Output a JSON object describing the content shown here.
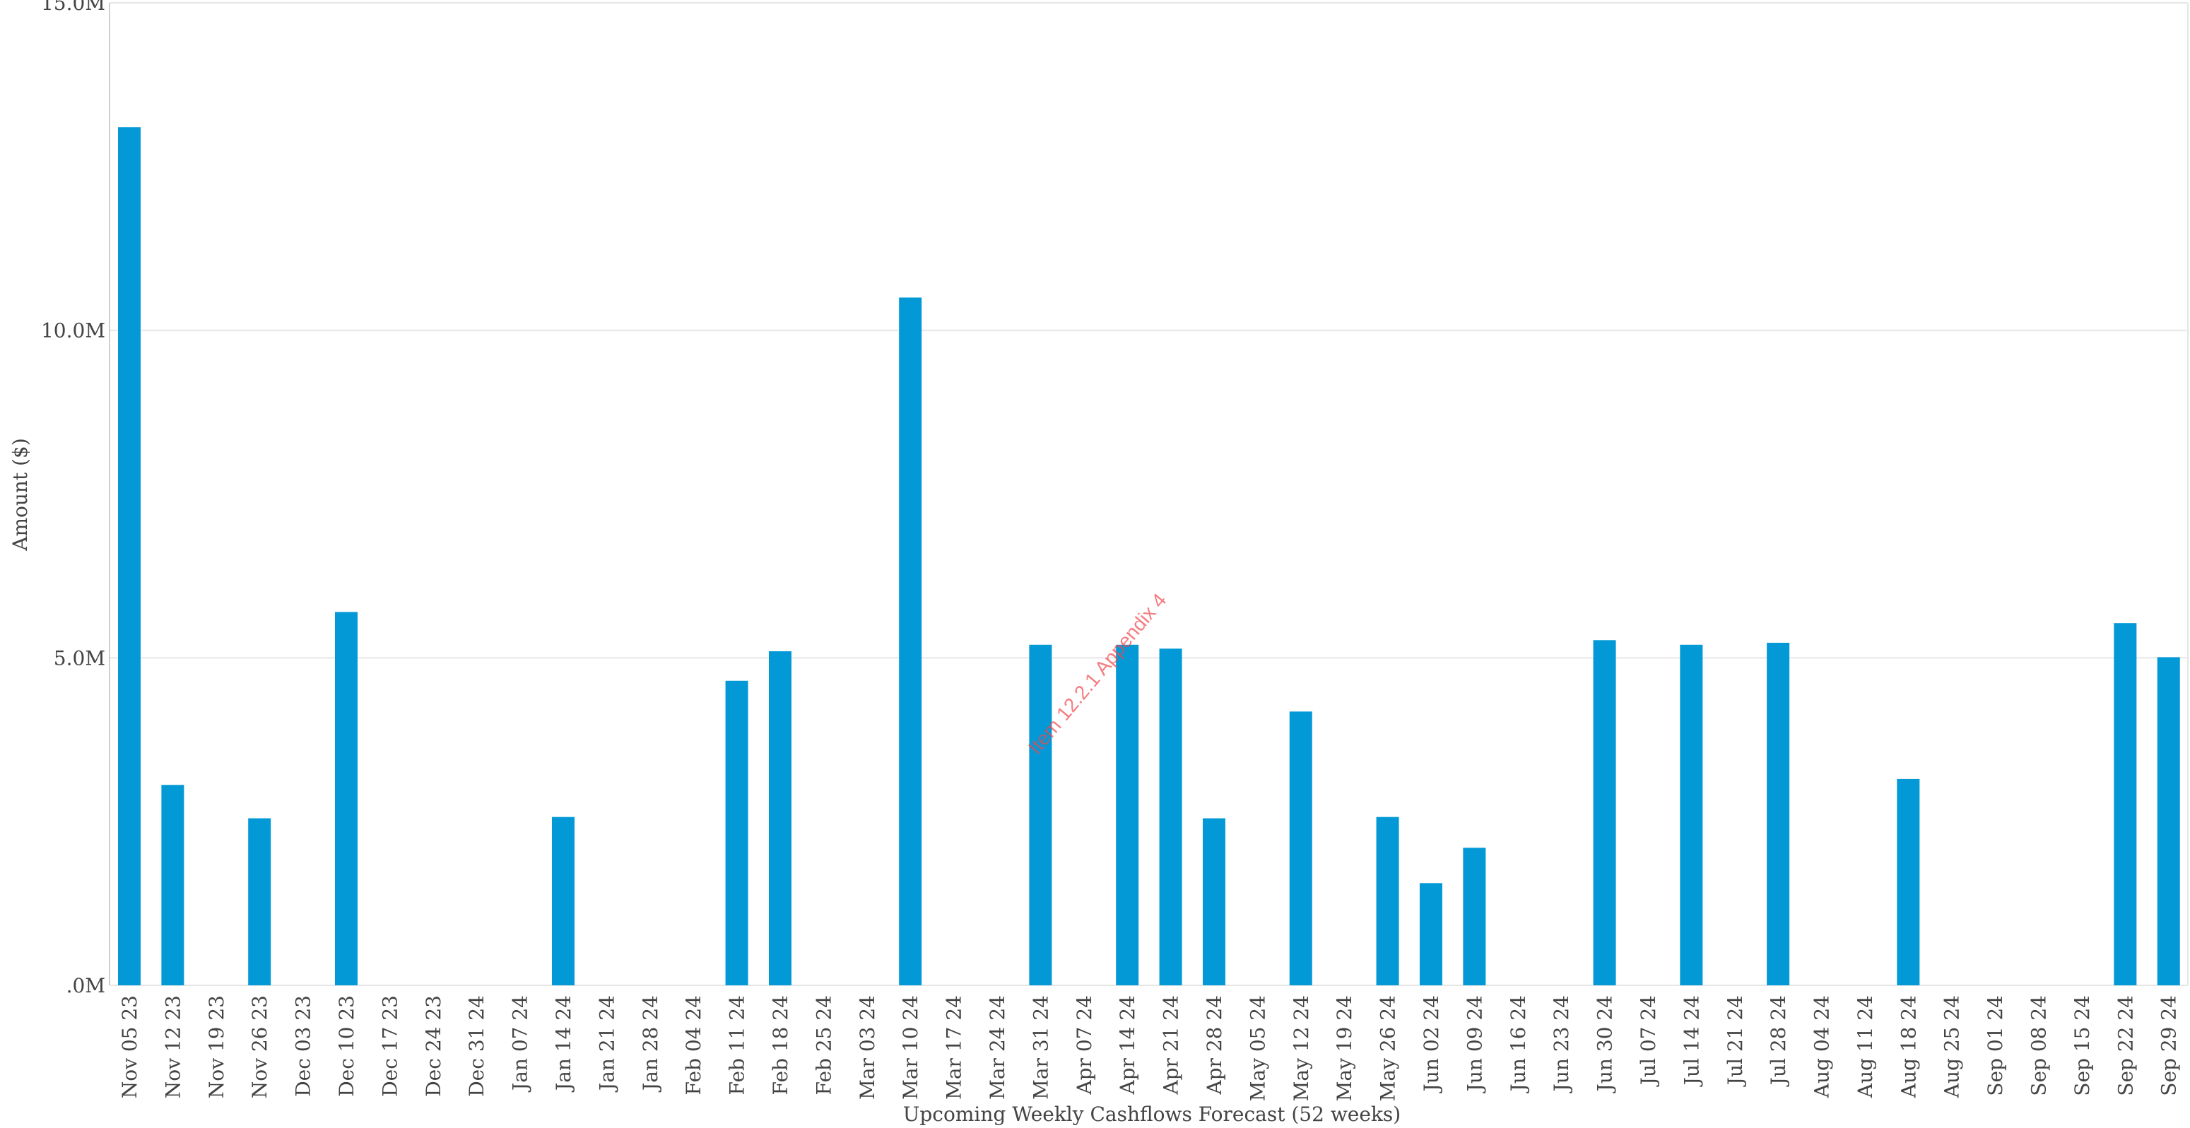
{
  "chart_data": {
    "type": "bar",
    "x_label": "Upcoming Weekly Cashflows Forecast (52 weeks)",
    "y_label": "Amount ($)",
    "annotation": "Item 12.2.1 Appendix 4",
    "color": "#0399d6",
    "grid": true,
    "categories": [
      "Nov 05 23",
      "Nov 12 23",
      "Nov 19 23",
      "Nov 26 23",
      "Dec 03 23",
      "Dec 10 23",
      "Dec 17 23",
      "Dec 24 23",
      "Dec 31 24",
      "Jan 07 24",
      "Jan 14 24",
      "Jan 21 24",
      "Jan 28 24",
      "Feb 04 24",
      "Feb 11 24",
      "Feb 18 24",
      "Feb 25 24",
      "Mar 03 24",
      "Mar 10 24",
      "Mar 17 24",
      "Mar 24 24",
      "Mar 31 24",
      "Apr 07 24",
      "Apr 14 24",
      "Apr 21 24",
      "Apr 28 24",
      "May 05 24",
      "May 12 24",
      "May 19 24",
      "May 26 24",
      "Jun 02 24",
      "Jun 09 24",
      "Jun 16 24",
      "Jun 23 24",
      "Jun 30 24",
      "Jul 07 24",
      "Jul 14 24",
      "Jul 21 24",
      "Jul 28 24",
      "Aug 04 24",
      "Aug 11 24",
      "Aug 18 24",
      "Aug 25 24",
      "Sep 01 24",
      "Sep 08 24",
      "Sep 15 24",
      "Sep 22 24",
      "Sep 29 24"
    ],
    "values": [
      13.1,
      3.06,
      0,
      2.55,
      0,
      5.7,
      0,
      0,
      0,
      0,
      2.57,
      0,
      0,
      0,
      4.65,
      5.1,
      0,
      0,
      10.5,
      0,
      0,
      5.2,
      0,
      5.2,
      5.14,
      2.55,
      0,
      4.18,
      0,
      2.57,
      1.56,
      2.1,
      0,
      0,
      5.27,
      0,
      5.2,
      0,
      5.23,
      0,
      0,
      3.15,
      0,
      0,
      0,
      0,
      5.53,
      5.01
    ],
    "ylim": [
      0,
      15
    ],
    "yticks": [
      {
        "value": 0,
        "label": ".0M"
      },
      {
        "value": 5,
        "label": "5.0M"
      },
      {
        "value": 10,
        "label": "10.0M"
      },
      {
        "value": 15,
        "label": "15.0M"
      }
    ]
  }
}
